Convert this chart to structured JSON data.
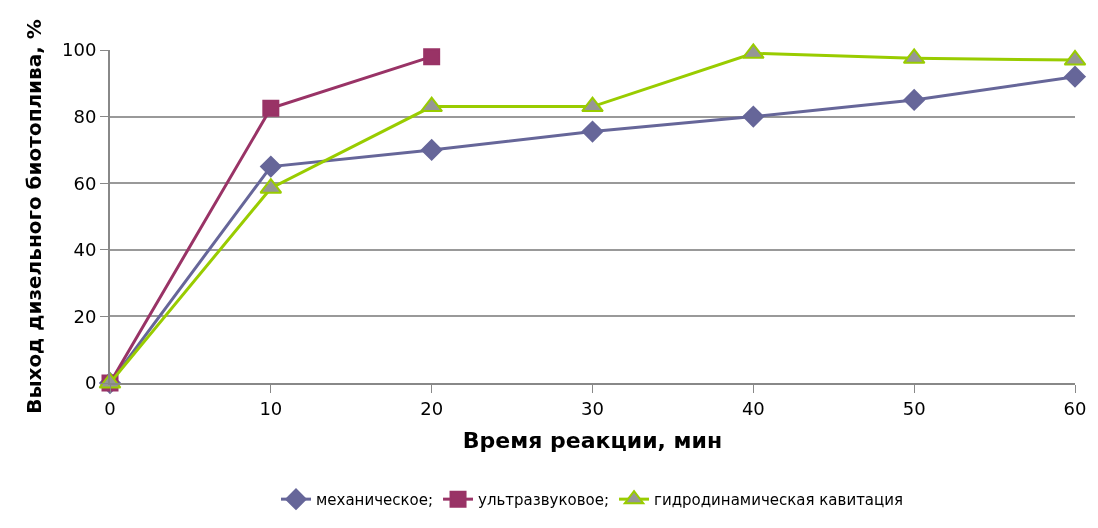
{
  "chart_data": {
    "type": "line",
    "xlabel": "Время реакции, мин",
    "ylabel": "Выход дизельного биотоплива, %",
    "x": [
      0,
      10,
      20,
      30,
      40,
      50,
      60
    ],
    "series": [
      {
        "name": "механическое;",
        "color": "#666699",
        "marker": "diamond",
        "values": [
          0,
          65,
          70,
          75.5,
          80,
          85,
          92
        ]
      },
      {
        "name": "ультразвуковое;",
        "color": "#993366",
        "marker": "square",
        "x": [
          0,
          10,
          20
        ],
        "values": [
          0,
          82.5,
          98
        ]
      },
      {
        "name": "гидродинамическая кавитация",
        "color": "#99cc00",
        "marker": "triangle",
        "values": [
          0,
          58.5,
          83,
          83,
          99,
          97.5,
          97
        ]
      }
    ],
    "xlim": [
      0,
      60
    ],
    "xticks": [
      0,
      10,
      20,
      30,
      40,
      50,
      60
    ],
    "ylim": [
      0,
      100
    ],
    "yticks": [
      0,
      20,
      40,
      60,
      80,
      100
    ],
    "grid": "y",
    "legend": "bottom"
  }
}
